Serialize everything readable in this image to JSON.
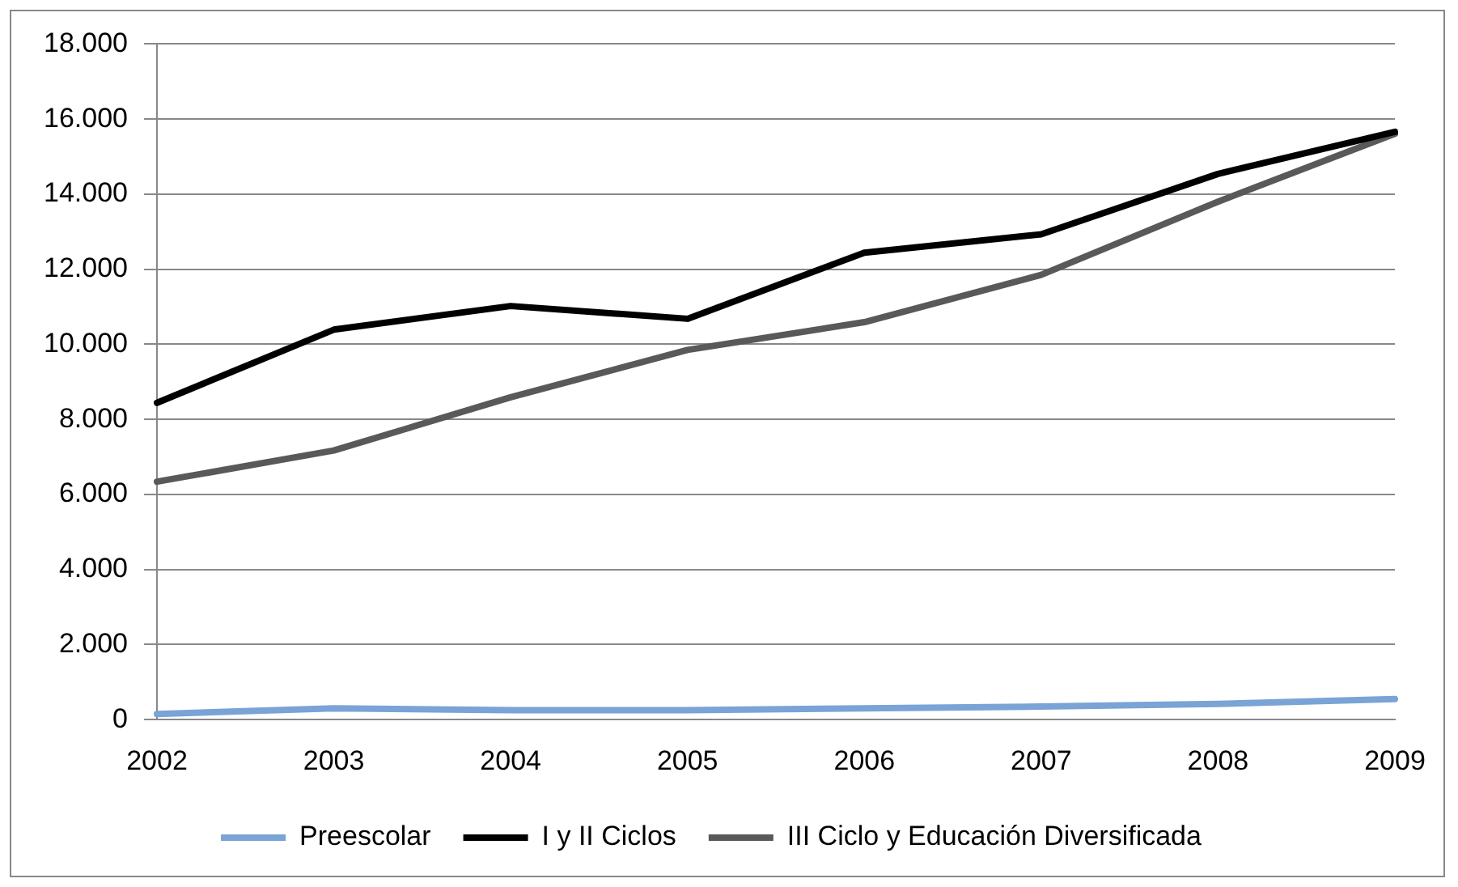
{
  "chart_data": {
    "type": "line",
    "categories": [
      "2002",
      "2003",
      "2004",
      "2005",
      "2006",
      "2007",
      "2008",
      "2009"
    ],
    "series": [
      {
        "name": "Preescolar",
        "color": "#7aa3d6",
        "values": [
          150,
          300,
          250,
          250,
          300,
          350,
          420,
          550
        ]
      },
      {
        "name": "I y II Ciclos",
        "color": "#000000",
        "values": [
          8440,
          10390,
          11020,
          10680,
          12440,
          12930,
          14540,
          15660
        ]
      },
      {
        "name": "III Ciclo y Educación Diversificada",
        "color": "#595959",
        "values": [
          6340,
          7170,
          8590,
          9850,
          10590,
          11850,
          13800,
          15610
        ]
      }
    ],
    "ylim": [
      0,
      18000
    ],
    "yticks": [
      {
        "value": 0,
        "label": "0"
      },
      {
        "value": 2000,
        "label": "2.000"
      },
      {
        "value": 4000,
        "label": "4.000"
      },
      {
        "value": 6000,
        "label": "6.000"
      },
      {
        "value": 8000,
        "label": "8.000"
      },
      {
        "value": 10000,
        "label": "10.000"
      },
      {
        "value": 12000,
        "label": "12.000"
      },
      {
        "value": 14000,
        "label": "14.000"
      },
      {
        "value": 16000,
        "label": "16.000"
      },
      {
        "value": 18000,
        "label": "18.000"
      }
    ],
    "grid": "y",
    "legend": "bottom",
    "marker": "none",
    "line_style": "solid"
  }
}
